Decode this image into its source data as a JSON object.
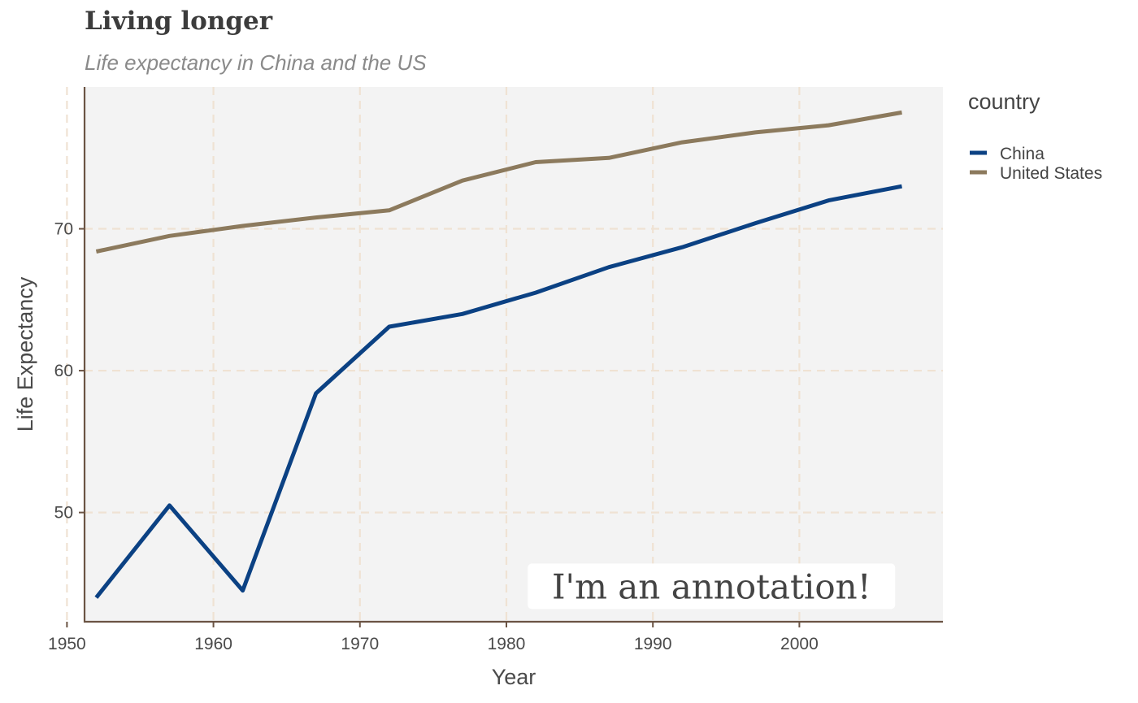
{
  "chart_data": {
    "type": "line",
    "title": "Living longer",
    "subtitle": "Life expectancy in China and the US",
    "xlabel": "Year",
    "ylabel": "Life Expectancy",
    "xlim": [
      1951.2,
      2009.8
    ],
    "ylim": [
      42.3,
      80.0
    ],
    "x_ticks": [
      1950,
      1960,
      1970,
      1980,
      1990,
      2000
    ],
    "y_ticks": [
      50,
      60,
      70
    ],
    "grid": true,
    "legend_title": "country",
    "legend_position": "right",
    "x": [
      1952,
      1957,
      1962,
      1967,
      1972,
      1977,
      1982,
      1987,
      1992,
      1997,
      2002,
      2007
    ],
    "series": [
      {
        "name": "China",
        "color": "#0b4183",
        "values": [
          44.0,
          50.5,
          44.5,
          58.4,
          63.1,
          64.0,
          65.5,
          67.3,
          68.7,
          70.4,
          72.0,
          73.0
        ]
      },
      {
        "name": "United States",
        "color": "#8c7a5d",
        "values": [
          68.4,
          69.5,
          70.2,
          70.8,
          71.3,
          73.4,
          74.7,
          75.0,
          76.1,
          76.8,
          77.3,
          78.2
        ]
      }
    ],
    "annotations": [
      {
        "text": "I'm an annotation!",
        "x": 1994,
        "y": 44.8
      }
    ]
  }
}
